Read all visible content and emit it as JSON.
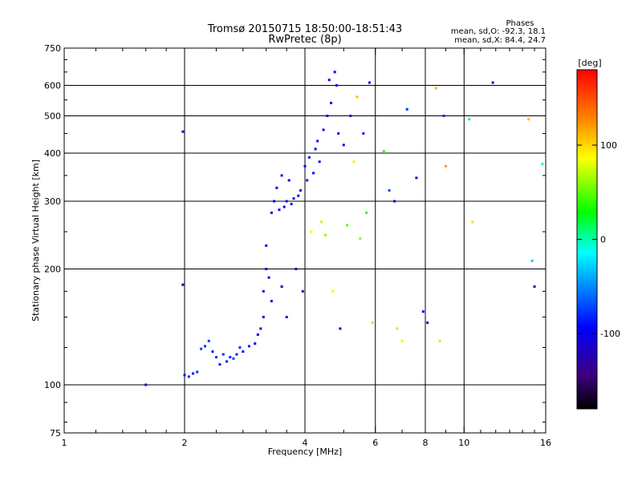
{
  "chart_data": {
    "type": "scatter",
    "title": "Tromsø 20150715 18:50:00-18:51:43",
    "subtitle": "RwPretec (8p)",
    "xlabel": "Frequency [MHz]",
    "ylabel": "Stationary phase Virtual Height [km]",
    "x_scale": "log2",
    "y_scale": "log",
    "xlim": [
      1,
      16
    ],
    "ylim": [
      75,
      750
    ],
    "x_ticks": [
      1,
      2,
      4,
      6,
      8,
      10,
      16
    ],
    "y_ticks": [
      75,
      100,
      200,
      300,
      400,
      500,
      600,
      750
    ],
    "x_grid": [
      2,
      4,
      6,
      8,
      10
    ],
    "y_grid": [
      100,
      200,
      300,
      400,
      500,
      600
    ],
    "grid": true,
    "colorbar": {
      "label": "[deg]",
      "range": [
        -180,
        180
      ],
      "ticks": [
        -100,
        0,
        100
      ],
      "colors": [
        "#000000",
        "#3d0080",
        "#0000ff",
        "#00a0ff",
        "#00ffff",
        "#00ff00",
        "#ffff00",
        "#ff8000",
        "#ff0000"
      ]
    },
    "stats": {
      "heading": "Phases",
      "line_o": "mean, sd,O: -92.3, 18.1",
      "line_x": "mean, sd,X:  84.4, 24.7"
    },
    "series": [
      {
        "points": [
          [
            1.6,
            100,
            -110
          ],
          [
            1.98,
            455,
            -95
          ],
          [
            1.98,
            182,
            -110
          ],
          [
            2.0,
            106,
            -90
          ],
          [
            2.05,
            105,
            -80
          ],
          [
            2.1,
            107,
            -85
          ],
          [
            2.15,
            108,
            -80
          ],
          [
            2.2,
            124,
            -75
          ],
          [
            2.25,
            126,
            -80
          ],
          [
            2.3,
            130,
            -75
          ],
          [
            2.35,
            122,
            -85
          ],
          [
            2.4,
            118,
            -80
          ],
          [
            2.45,
            113,
            -85
          ],
          [
            2.5,
            120,
            -80
          ],
          [
            2.55,
            115,
            -85
          ],
          [
            2.6,
            118,
            -80
          ],
          [
            2.65,
            117,
            -75
          ],
          [
            2.7,
            120,
            -85
          ],
          [
            2.75,
            125,
            -80
          ],
          [
            2.8,
            122,
            -90
          ],
          [
            2.9,
            126,
            -85
          ],
          [
            3.0,
            128,
            -95
          ],
          [
            3.05,
            135,
            -100
          ],
          [
            3.1,
            140,
            -105
          ],
          [
            3.15,
            150,
            -110
          ],
          [
            3.15,
            175,
            -110
          ],
          [
            3.2,
            200,
            -110
          ],
          [
            3.2,
            230,
            -105
          ],
          [
            3.25,
            190,
            -110
          ],
          [
            3.3,
            165,
            -110
          ],
          [
            3.3,
            280,
            -100
          ],
          [
            3.35,
            300,
            -95
          ],
          [
            3.4,
            325,
            -100
          ],
          [
            3.45,
            285,
            -95
          ],
          [
            3.5,
            350,
            -100
          ],
          [
            3.5,
            180,
            -110
          ],
          [
            3.55,
            290,
            -95
          ],
          [
            3.6,
            300,
            -90
          ],
          [
            3.6,
            150,
            -110
          ],
          [
            3.65,
            340,
            -100
          ],
          [
            3.7,
            295,
            -95
          ],
          [
            3.75,
            305,
            -90
          ],
          [
            3.8,
            200,
            -105
          ],
          [
            3.85,
            310,
            -95
          ],
          [
            3.9,
            320,
            -90
          ],
          [
            3.95,
            175,
            -110
          ],
          [
            4.0,
            370,
            -95
          ],
          [
            4.05,
            340,
            -90
          ],
          [
            4.1,
            390,
            -95
          ],
          [
            4.15,
            250,
            90
          ],
          [
            4.2,
            355,
            -90
          ],
          [
            4.25,
            410,
            -95
          ],
          [
            4.3,
            430,
            -90
          ],
          [
            4.35,
            380,
            -95
          ],
          [
            4.4,
            265,
            70
          ],
          [
            4.45,
            460,
            -95
          ],
          [
            4.5,
            245,
            60
          ],
          [
            4.55,
            500,
            -90
          ],
          [
            4.6,
            620,
            -95
          ],
          [
            4.65,
            540,
            -95
          ],
          [
            4.7,
            175,
            80
          ],
          [
            4.75,
            650,
            -95
          ],
          [
            4.8,
            600,
            -100
          ],
          [
            4.85,
            450,
            -100
          ],
          [
            4.9,
            140,
            -105
          ],
          [
            5.0,
            420,
            -95
          ],
          [
            5.1,
            260,
            50
          ],
          [
            5.2,
            500,
            -85
          ],
          [
            5.3,
            380,
            95
          ],
          [
            5.4,
            560,
            110
          ],
          [
            5.5,
            240,
            60
          ],
          [
            5.6,
            450,
            -85
          ],
          [
            5.7,
            280,
            40
          ],
          [
            5.8,
            610,
            -100
          ],
          [
            5.9,
            145,
            70
          ],
          [
            6.3,
            405,
            40
          ],
          [
            6.5,
            320,
            -70
          ],
          [
            6.7,
            300,
            -100
          ],
          [
            6.8,
            140,
            100
          ],
          [
            7.0,
            130,
            80
          ],
          [
            7.2,
            520,
            -80
          ],
          [
            7.6,
            345,
            -110
          ],
          [
            7.9,
            155,
            -95
          ],
          [
            8.1,
            145,
            -100
          ],
          [
            8.5,
            590,
            110
          ],
          [
            8.7,
            130,
            70
          ],
          [
            8.9,
            500,
            -80
          ],
          [
            9.0,
            370,
            120
          ],
          [
            10.3,
            490,
            10
          ],
          [
            10.5,
            265,
            100
          ],
          [
            11.8,
            610,
            -100
          ],
          [
            14.5,
            490,
            110
          ],
          [
            14.8,
            210,
            -30
          ],
          [
            15.0,
            180,
            -110
          ],
          [
            15.7,
            375,
            0
          ]
        ]
      }
    ]
  }
}
